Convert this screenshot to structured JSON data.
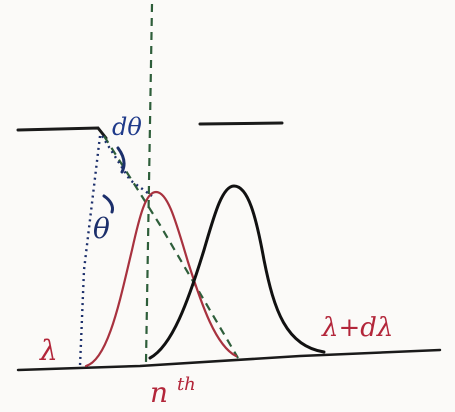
{
  "diagram": {
    "labels": {
      "d_theta": "dθ",
      "theta": "θ",
      "lambda": "λ",
      "lambda_plus_dlambda": "λ+dλ",
      "nth": "n",
      "nth_sup": "th"
    },
    "colors": {
      "baseline": "#1a1a1a",
      "slit": "#1a1a1a",
      "curve_lambda": "#a8323f",
      "curve_lambda_dlambda": "#111111",
      "dashed_green": "#2e5e3a",
      "dotted_blue": "#1c2f6b",
      "label_red": "#b3263a",
      "label_blue": "#1f3a8a",
      "label_navy": "#1c2f6b"
    }
  }
}
